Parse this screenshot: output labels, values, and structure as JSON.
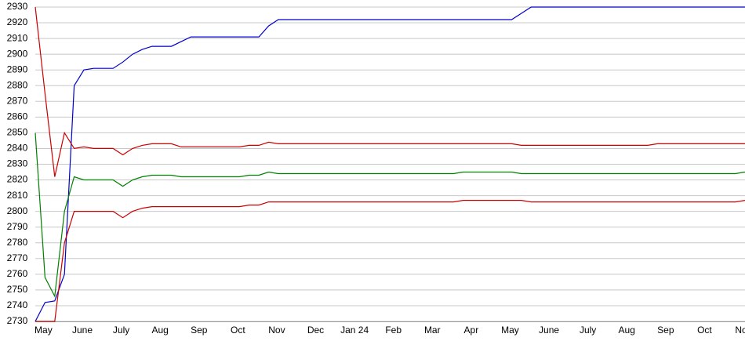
{
  "chart_data": {
    "type": "line",
    "categories": [
      null,
      "May",
      null,
      null,
      null,
      "June",
      null,
      null,
      null,
      "July",
      null,
      null,
      null,
      "Aug",
      null,
      null,
      null,
      "Sep",
      null,
      null,
      null,
      "Oct",
      null,
      null,
      null,
      "Nov",
      null,
      null,
      null,
      "Dec",
      null,
      null,
      null,
      "Jan 24",
      null,
      null,
      null,
      "Feb",
      null,
      null,
      null,
      "Mar",
      null,
      null,
      null,
      "Apr",
      null,
      null,
      null,
      "May",
      null,
      null,
      null,
      "June",
      null,
      null,
      null,
      "July",
      null,
      null,
      null,
      "Aug",
      null,
      null,
      null,
      "Sep",
      null,
      null,
      null,
      "Oct",
      null,
      null,
      null,
      "Nov"
    ],
    "series": [
      {
        "color": "#0000cc",
        "values": [
          2730,
          2742,
          2743,
          2760,
          2880,
          2890,
          2891,
          2891,
          2891,
          2895,
          2900,
          2903,
          2905,
          2905,
          2905,
          2908,
          2911,
          2911,
          2911,
          2911,
          2911,
          2911,
          2911,
          2911,
          2918,
          2922,
          2922,
          2922,
          2922,
          2922,
          2922,
          2922,
          2922,
          2922,
          2922,
          2922,
          2922,
          2922,
          2922,
          2922,
          2922,
          2922,
          2922,
          2922,
          2922,
          2922,
          2922,
          2922,
          2922,
          2922,
          2926,
          2930,
          2930,
          2930,
          2930,
          2930,
          2930,
          2930,
          2930,
          2930,
          2930,
          2930,
          2930,
          2930,
          2930,
          2930,
          2930,
          2930,
          2930,
          2930,
          2930,
          2930,
          2930,
          2930
        ]
      },
      {
        "color": "#cc0000",
        "values": [
          2930,
          2875,
          2822,
          2850,
          2840,
          2841,
          2840,
          2840,
          2840,
          2836,
          2840,
          2842,
          2843,
          2843,
          2843,
          2841,
          2841,
          2841,
          2841,
          2841,
          2841,
          2841,
          2842,
          2842,
          2844,
          2843,
          2843,
          2843,
          2843,
          2843,
          2843,
          2843,
          2843,
          2843,
          2843,
          2843,
          2843,
          2843,
          2843,
          2843,
          2843,
          2843,
          2843,
          2843,
          2843,
          2843,
          2843,
          2843,
          2843,
          2843,
          2842,
          2842,
          2842,
          2842,
          2842,
          2842,
          2842,
          2842,
          2842,
          2842,
          2842,
          2842,
          2842,
          2842,
          2843,
          2843,
          2843,
          2843,
          2843,
          2843,
          2843,
          2843,
          2843,
          2843
        ]
      },
      {
        "color": "#008000",
        "values": [
          2850,
          2758,
          2746,
          2800,
          2822,
          2820,
          2820,
          2820,
          2820,
          2816,
          2820,
          2822,
          2823,
          2823,
          2823,
          2822,
          2822,
          2822,
          2822,
          2822,
          2822,
          2822,
          2823,
          2823,
          2825,
          2824,
          2824,
          2824,
          2824,
          2824,
          2824,
          2824,
          2824,
          2824,
          2824,
          2824,
          2824,
          2824,
          2824,
          2824,
          2824,
          2824,
          2824,
          2824,
          2825,
          2825,
          2825,
          2825,
          2825,
          2825,
          2824,
          2824,
          2824,
          2824,
          2824,
          2824,
          2824,
          2824,
          2824,
          2824,
          2824,
          2824,
          2824,
          2824,
          2824,
          2824,
          2824,
          2824,
          2824,
          2824,
          2824,
          2824,
          2824,
          2825
        ]
      },
      {
        "color": "#cc0000",
        "values": [
          2730,
          2730,
          2730,
          2780,
          2800,
          2800,
          2800,
          2800,
          2800,
          2796,
          2800,
          2802,
          2803,
          2803,
          2803,
          2803,
          2803,
          2803,
          2803,
          2803,
          2803,
          2803,
          2804,
          2804,
          2806,
          2806,
          2806,
          2806,
          2806,
          2806,
          2806,
          2806,
          2806,
          2806,
          2806,
          2806,
          2806,
          2806,
          2806,
          2806,
          2806,
          2806,
          2806,
          2806,
          2807,
          2807,
          2807,
          2807,
          2807,
          2807,
          2807,
          2806,
          2806,
          2806,
          2806,
          2806,
          2806,
          2806,
          2806,
          2806,
          2806,
          2806,
          2806,
          2806,
          2806,
          2806,
          2806,
          2806,
          2806,
          2806,
          2806,
          2806,
          2806,
          2807
        ]
      }
    ],
    "ylim": [
      2730,
      2930
    ],
    "yticks": [
      2730,
      2740,
      2750,
      2760,
      2770,
      2780,
      2790,
      2800,
      2810,
      2820,
      2830,
      2840,
      2850,
      2860,
      2870,
      2880,
      2890,
      2900,
      2910,
      2920,
      2930
    ],
    "grid": true
  }
}
